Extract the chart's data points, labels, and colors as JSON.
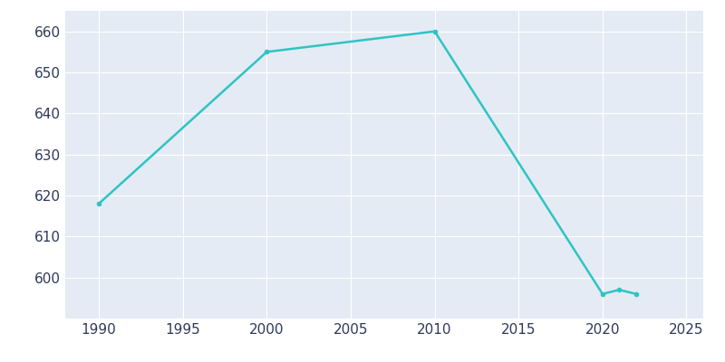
{
  "years": [
    1990,
    2000,
    2010,
    2020,
    2021,
    2022
  ],
  "populations": [
    618,
    655,
    660,
    596,
    597,
    596
  ],
  "line_color": "#2EC4C4",
  "plot_bg_color": "#E4EBF4",
  "fig_bg_color": "#FFFFFF",
  "grid_color": "#FFFFFF",
  "text_color": "#2E3A59",
  "xlim": [
    1988,
    2026
  ],
  "ylim": [
    590,
    665
  ],
  "xticks": [
    1990,
    1995,
    2000,
    2005,
    2010,
    2015,
    2020,
    2025
  ],
  "yticks": [
    600,
    610,
    620,
    630,
    640,
    650,
    660
  ],
  "line_width": 1.8,
  "figsize": [
    8.0,
    4.0
  ],
  "dpi": 100,
  "tick_fontsize": 11
}
